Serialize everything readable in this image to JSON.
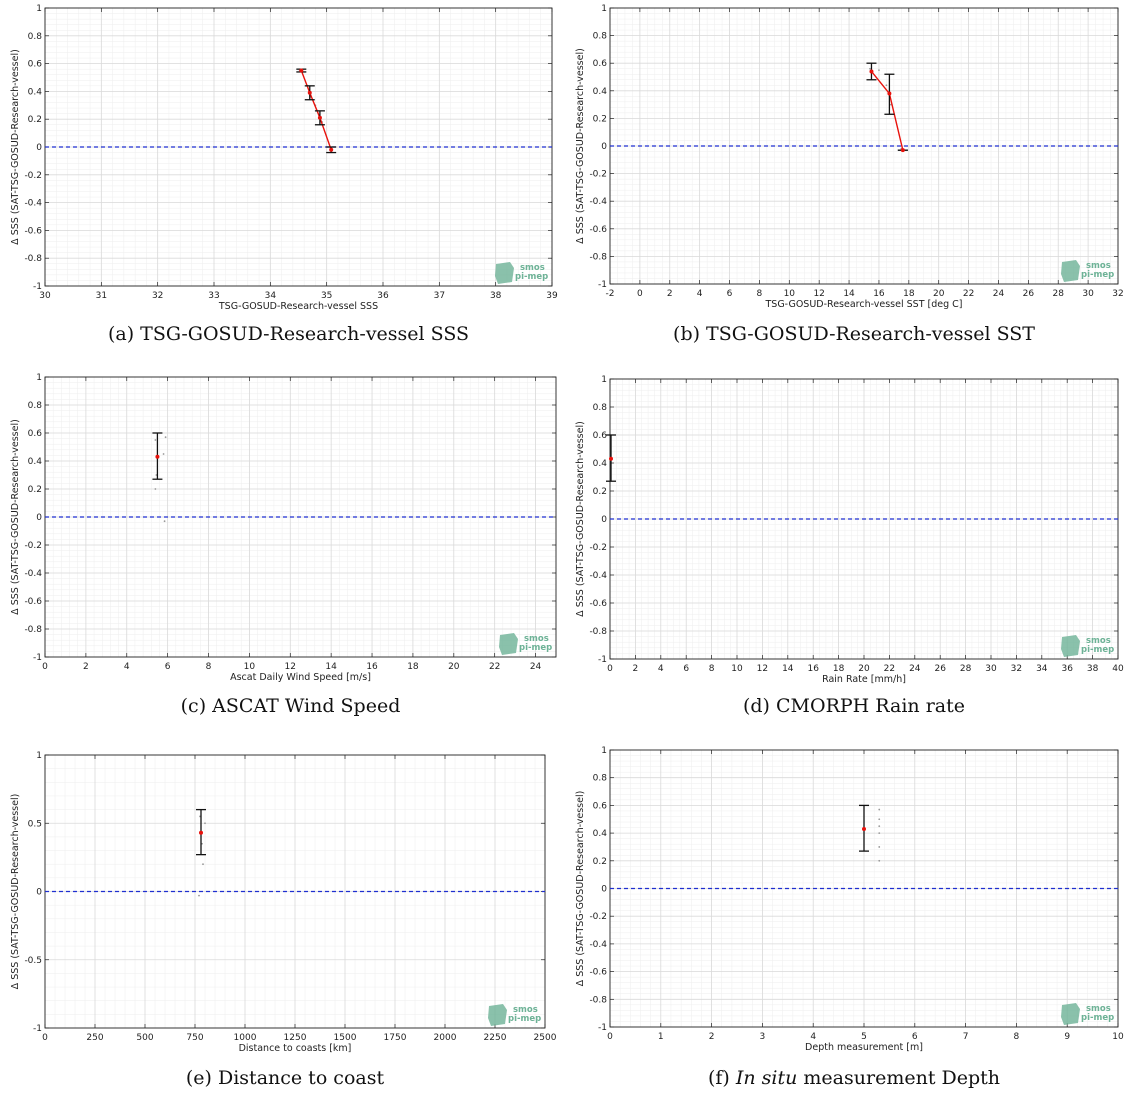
{
  "chart_data": [
    {
      "type": "scatter",
      "xlabel": "TSG-GOSUD-Research-vessel SSS",
      "ylabel": "Δ SSS (SAT-TSG-GOSUD-Research-vessel)",
      "caption": "(a) TSG-GOSUD-Research-vessel SSS",
      "xlim": [
        30,
        39
      ],
      "ylim": [
        -1,
        1
      ],
      "xticks": [
        30,
        31,
        32,
        33,
        34,
        35,
        36,
        37,
        38,
        39
      ],
      "yticks": [
        -1,
        -0.8,
        -0.6,
        -0.4,
        -0.2,
        0,
        0.2,
        0.4,
        0.6,
        0.8,
        1
      ],
      "grid": true,
      "zero_line": 0,
      "mean_line": true,
      "points": [
        {
          "x": 34.55,
          "mean": 0.55,
          "low": 0.54,
          "high": 0.56
        },
        {
          "x": 34.7,
          "mean": 0.39,
          "low": 0.34,
          "high": 0.44
        },
        {
          "x": 34.88,
          "mean": 0.21,
          "low": 0.16,
          "high": 0.26
        },
        {
          "x": 35.08,
          "mean": -0.02,
          "low": -0.04,
          "high": 0.0
        }
      ],
      "scatter": [
        {
          "x": 34.52,
          "y": 0.55
        },
        {
          "x": 34.66,
          "y": 0.44
        },
        {
          "x": 34.72,
          "y": 0.36
        },
        {
          "x": 34.8,
          "y": 0.3
        },
        {
          "x": 34.92,
          "y": 0.18
        },
        {
          "x": 35.1,
          "y": -0.02
        }
      ]
    },
    {
      "type": "scatter",
      "xlabel": "TSG-GOSUD-Research-vessel SST [deg C]",
      "ylabel": "Δ SSS (SAT-TSG-GOSUD-Research-vessel)",
      "caption": "(b) TSG-GOSUD-Research-vessel SST",
      "xlim": [
        -2,
        32
      ],
      "ylim": [
        -1,
        1
      ],
      "xticks": [
        -2,
        0,
        2,
        4,
        6,
        8,
        10,
        12,
        14,
        16,
        18,
        20,
        22,
        24,
        26,
        28,
        30,
        32
      ],
      "yticks": [
        -1,
        -0.8,
        -0.6,
        -0.4,
        -0.2,
        0,
        0.2,
        0.4,
        0.6,
        0.8,
        1
      ],
      "grid": true,
      "zero_line": 0,
      "mean_line": true,
      "points": [
        {
          "x": 15.5,
          "mean": 0.54,
          "low": 0.48,
          "high": 0.6
        },
        {
          "x": 16.7,
          "mean": 0.38,
          "low": 0.23,
          "high": 0.52
        },
        {
          "x": 17.6,
          "mean": -0.03,
          "low": -0.03,
          "high": -0.03
        }
      ],
      "scatter": [
        {
          "x": 15.4,
          "y": 0.56
        },
        {
          "x": 16.0,
          "y": 0.55
        },
        {
          "x": 16.5,
          "y": 0.44
        },
        {
          "x": 16.8,
          "y": 0.3
        },
        {
          "x": 17.5,
          "y": -0.02
        }
      ]
    },
    {
      "type": "scatter",
      "xlabel": "Ascat Daily Wind Speed [m/s]",
      "ylabel": "Δ SSS (SAT-TSG-GOSUD-Research-vessel)",
      "caption": "(c) ASCAT Wind Speed",
      "xlim": [
        0,
        25
      ],
      "ylim": [
        -1,
        1
      ],
      "xticks": [
        0,
        2,
        4,
        6,
        8,
        10,
        12,
        14,
        16,
        18,
        20,
        22,
        24
      ],
      "yticks": [
        -1,
        -0.8,
        -0.6,
        -0.4,
        -0.2,
        0,
        0.2,
        0.4,
        0.6,
        0.8,
        1
      ],
      "grid": true,
      "zero_line": 0,
      "mean_line": false,
      "points": [
        {
          "x": 5.5,
          "mean": 0.43,
          "low": 0.27,
          "high": 0.6
        }
      ],
      "scatter": [
        {
          "x": 5.4,
          "y": 0.55
        },
        {
          "x": 5.45,
          "y": 0.3
        },
        {
          "x": 5.8,
          "y": 0.45
        },
        {
          "x": 5.9,
          "y": 0.57
        },
        {
          "x": 5.85,
          "y": -0.03
        },
        {
          "x": 5.4,
          "y": 0.2
        }
      ]
    },
    {
      "type": "scatter",
      "xlabel": "Rain Rate [mm/h]",
      "ylabel": "Δ SSS (SAT-TSG-GOSUD-Research-vessel)",
      "caption": "(d) CMORPH Rain rate",
      "xlim": [
        0,
        40
      ],
      "ylim": [
        -1,
        1
      ],
      "xticks": [
        0,
        2,
        4,
        6,
        8,
        10,
        12,
        14,
        16,
        18,
        20,
        22,
        24,
        26,
        28,
        30,
        32,
        34,
        36,
        38,
        40
      ],
      "yticks": [
        -1,
        -0.8,
        -0.6,
        -0.4,
        -0.2,
        0,
        0.2,
        0.4,
        0.6,
        0.8,
        1
      ],
      "grid": true,
      "zero_line": 0,
      "mean_line": false,
      "points": [
        {
          "x": 0,
          "mean": 0.43,
          "low": 0.27,
          "high": 0.6
        }
      ],
      "scatter": []
    },
    {
      "type": "scatter",
      "xlabel": "Distance to coasts [km]",
      "ylabel": "Δ SSS (SAT-TSG-GOSUD-Research-vessel)",
      "caption": "(e) Distance to coast",
      "xlim": [
        0,
        2500
      ],
      "ylim": [
        -1,
        1
      ],
      "xticks": [
        0,
        250,
        500,
        750,
        1000,
        1250,
        1500,
        1750,
        2000,
        2250,
        2500
      ],
      "yticks": [
        -1,
        -0.5,
        0,
        0.5,
        1
      ],
      "grid": true,
      "zero_line": 0,
      "mean_line": false,
      "points": [
        {
          "x": 780,
          "mean": 0.43,
          "low": 0.27,
          "high": 0.6
        }
      ],
      "scatter": [
        {
          "x": 775,
          "y": 0.55
        },
        {
          "x": 790,
          "y": 0.2
        },
        {
          "x": 770,
          "y": -0.03
        },
        {
          "x": 800,
          "y": 0.5
        },
        {
          "x": 785,
          "y": 0.35
        }
      ]
    },
    {
      "type": "scatter",
      "xlabel": "Depth measurement [m]",
      "ylabel": "Δ SSS (SAT-TSG-GOSUD-Research-vessel)",
      "caption_italic": "In situ",
      "caption_rest": " measurement Depth",
      "caption_prefix": "(f) ",
      "xlim": [
        0,
        10
      ],
      "ylim": [
        -1,
        1
      ],
      "xticks": [
        0,
        1,
        2,
        3,
        4,
        5,
        6,
        7,
        8,
        9,
        10
      ],
      "yticks": [
        -1,
        -0.8,
        -0.6,
        -0.4,
        -0.2,
        0,
        0.2,
        0.4,
        0.6,
        0.8,
        1
      ],
      "grid": true,
      "zero_line": 0,
      "mean_line": false,
      "points": [
        {
          "x": 5,
          "mean": 0.43,
          "low": 0.27,
          "high": 0.6
        }
      ],
      "scatter": [
        {
          "x": 5.3,
          "y": 0.57
        },
        {
          "x": 5.3,
          "y": 0.5
        },
        {
          "x": 5.3,
          "y": 0.4
        },
        {
          "x": 5.3,
          "y": 0.3
        },
        {
          "x": 5.3,
          "y": 0.2
        },
        {
          "x": 5.3,
          "y": 0.45
        }
      ]
    }
  ],
  "logo": {
    "line1": "smos",
    "line2": "pi-mep",
    "color": "#6db296"
  },
  "colors": {
    "mean_line": "#e8120c",
    "zero_line": "#1f2fd0",
    "error_bar": "#111111",
    "grid": "#d9d9d9",
    "scatter": "#999999"
  }
}
